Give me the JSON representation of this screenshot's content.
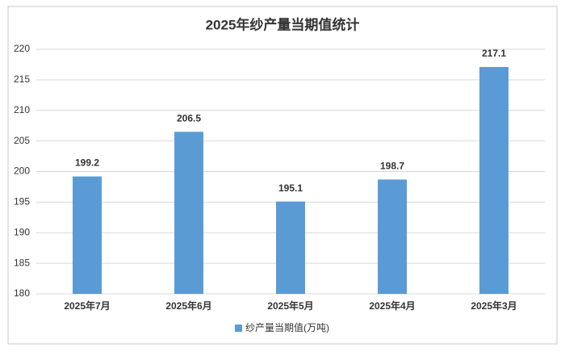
{
  "chart_data": {
    "type": "bar",
    "title": "2025年纱产量当期值统计",
    "categories": [
      "2025年7月",
      "2025年6月",
      "2025年5月",
      "2025年4月",
      "2025年3月"
    ],
    "series": [
      {
        "name": "纱产量当期值(万吨)",
        "color": "#5b9bd5",
        "values": [
          199.2,
          206.5,
          195.1,
          198.7,
          217.1
        ]
      }
    ],
    "ylim": [
      180,
      220
    ],
    "yticks": [
      180,
      185,
      190,
      195,
      200,
      205,
      210,
      215,
      220
    ],
    "grid": true,
    "legend": "bottom"
  }
}
